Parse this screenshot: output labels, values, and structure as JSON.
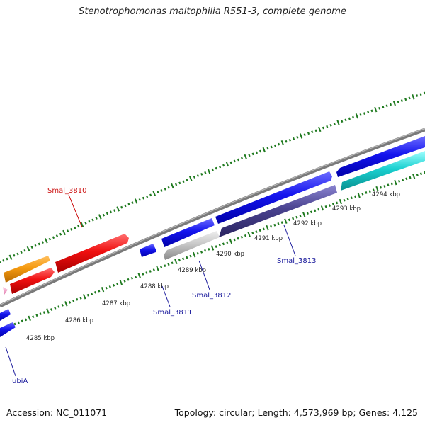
{
  "title": "Stenotrophomonas maltophilia R551-3, complete genome",
  "accession": "Accession: NC_011071",
  "summary": "Topology: circular; Length: 4,573,969 bp; Genes: 4,125",
  "colors": {
    "backbone": "#8c8c8c",
    "ticks": "#1f7a1f",
    "label_blue": "#1a1a9c",
    "label_red": "#cc1111"
  },
  "kbp_labels": [
    {
      "text": "4285 kbp",
      "kbp": 4285
    },
    {
      "text": "4286 kbp",
      "kbp": 4286
    },
    {
      "text": "4287 kbp",
      "kbp": 4287
    },
    {
      "text": "4288 kbp",
      "kbp": 4288
    },
    {
      "text": "4289 kbp",
      "kbp": 4289
    },
    {
      "text": "4290 kbp",
      "kbp": 4290
    },
    {
      "text": "4291 kbp",
      "kbp": 4291
    },
    {
      "text": "4292 kbp",
      "kbp": 4292
    },
    {
      "text": "4293 kbp",
      "kbp": 4293
    },
    {
      "text": "4294 kbp",
      "kbp": 4294
    }
  ],
  "genes": [
    {
      "name": "ubiA",
      "color": "blue"
    },
    {
      "name": "Smal_3810",
      "color": "red"
    },
    {
      "name": "Smal_3811",
      "color": "blue"
    },
    {
      "name": "Smal_3812",
      "color": "blue"
    },
    {
      "name": "Smal_3813",
      "color": "blue"
    }
  ]
}
